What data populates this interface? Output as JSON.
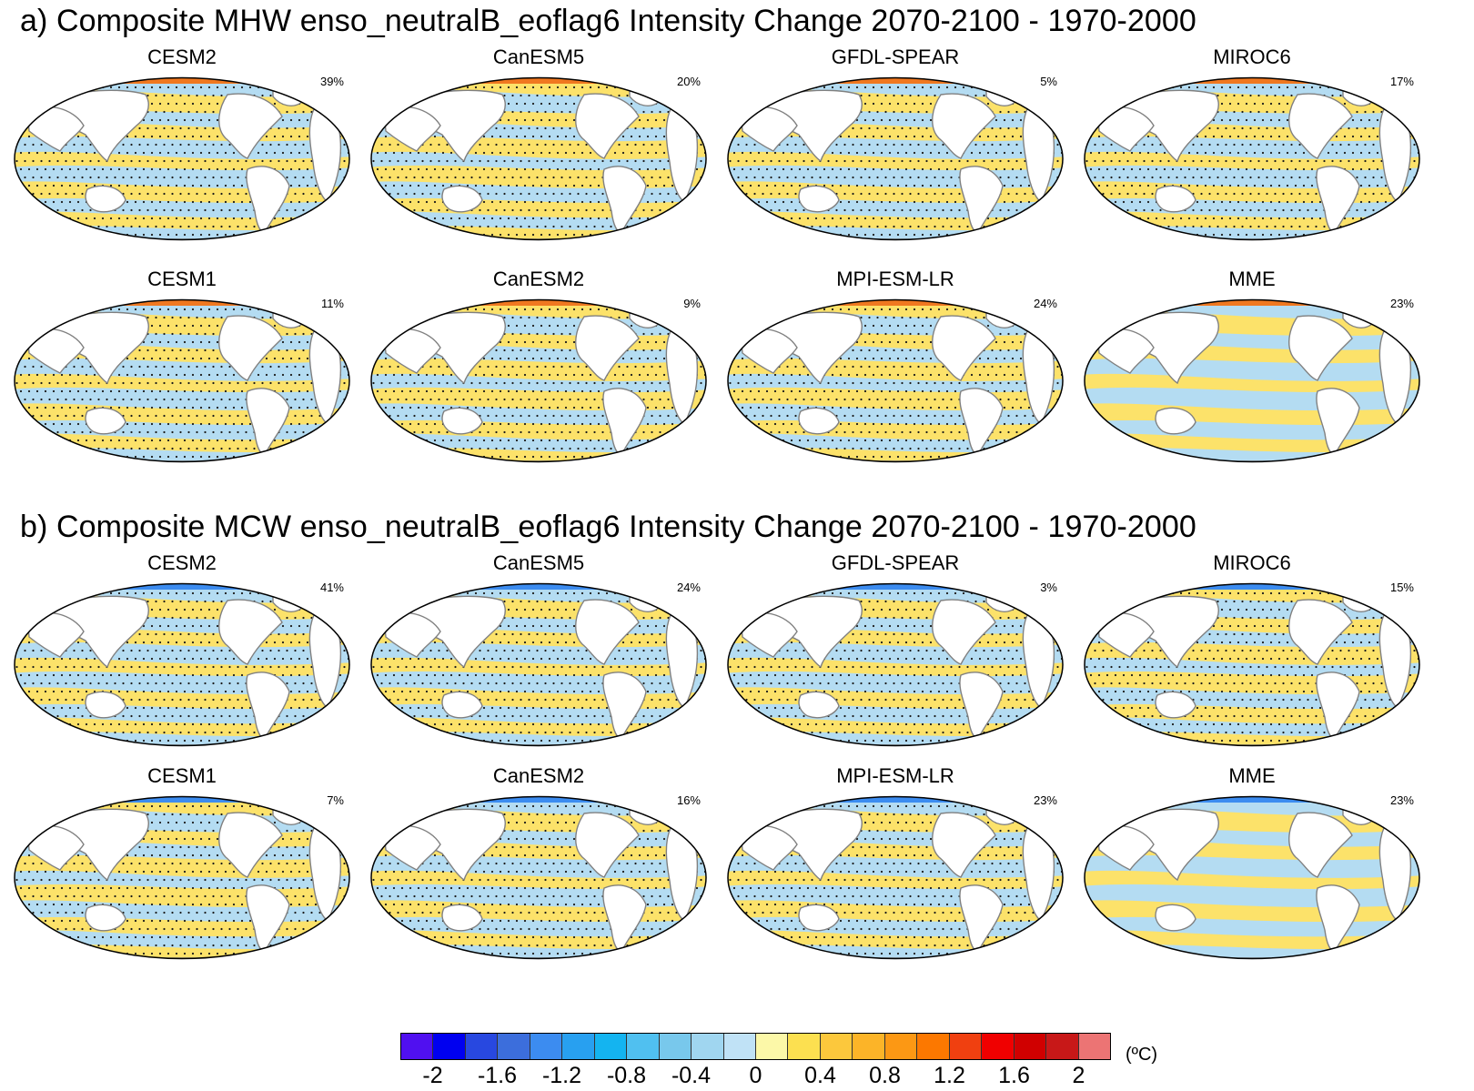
{
  "figure": {
    "title_a": "a) Composite MHW enso_neutralB_eoflag6 Intensity Change 2070-2100 - 1970-2000",
    "title_b": "b) Composite MCW enso_neutralB_eoflag6 Intensity Change 2070-2100 - 1970-2000"
  },
  "panels": [
    {
      "model": "CESM2",
      "pct": "39%",
      "section": "a",
      "dominant": "warm",
      "stipple": true
    },
    {
      "model": "CanESM5",
      "pct": "20%",
      "section": "a",
      "dominant": "cool",
      "stipple": true
    },
    {
      "model": "GFDL-SPEAR",
      "pct": "5%",
      "section": "a",
      "dominant": "warm",
      "stipple": true
    },
    {
      "model": "MIROC6",
      "pct": "17%",
      "section": "a",
      "dominant": "warm",
      "stipple": true
    },
    {
      "model": "CESM1",
      "pct": "11%",
      "section": "a",
      "dominant": "warm",
      "stipple": true
    },
    {
      "model": "CanESM2",
      "pct": "9%",
      "section": "a",
      "dominant": "cool",
      "stipple": true
    },
    {
      "model": "MPI-ESM-LR",
      "pct": "24%",
      "section": "a",
      "dominant": "cool",
      "stipple": true
    },
    {
      "model": "MME",
      "pct": "23%",
      "section": "a",
      "dominant": "warm",
      "stipple": false
    },
    {
      "model": "CESM2",
      "pct": "41%",
      "section": "b",
      "dominant": "warm",
      "stipple": true
    },
    {
      "model": "CanESM5",
      "pct": "24%",
      "section": "b",
      "dominant": "warm",
      "stipple": true
    },
    {
      "model": "GFDL-SPEAR",
      "pct": "3%",
      "section": "b",
      "dominant": "warm",
      "stipple": true
    },
    {
      "model": "MIROC6",
      "pct": "15%",
      "section": "b",
      "dominant": "cool",
      "stipple": true
    },
    {
      "model": "CESM1",
      "pct": "7%",
      "section": "b",
      "dominant": "cool",
      "stipple": true
    },
    {
      "model": "CanESM2",
      "pct": "16%",
      "section": "b",
      "dominant": "warm",
      "stipple": true
    },
    {
      "model": "MPI-ESM-LR",
      "pct": "23%",
      "section": "b",
      "dominant": "warm",
      "stipple": true
    },
    {
      "model": "MME",
      "pct": "23%",
      "section": "b",
      "dominant": "warm",
      "stipple": false
    }
  ],
  "colorbar": {
    "unit": "(ºC)",
    "colors": [
      "#5010f0",
      "#0000f0",
      "#2848e0",
      "#3c6edc",
      "#3c8cf0",
      "#28a0f0",
      "#14b4f0",
      "#50c0f0",
      "#78c8ec",
      "#a0d6f0",
      "#c0e2f6",
      "#fcf8a8",
      "#fce050",
      "#fcc83c",
      "#fcb428",
      "#fc9814",
      "#fc7800",
      "#f04010",
      "#f00000",
      "#d00000",
      "#c81818",
      "#ec7474"
    ],
    "tick_labels": [
      "-2",
      "-1.6",
      "-1.2",
      "-0.8",
      "-0.4",
      "0",
      "0.4",
      "0.8",
      "1.2",
      "1.6",
      "2"
    ],
    "levels": [
      -2.2,
      -2.0,
      -1.8,
      -1.6,
      -1.4,
      -1.2,
      -1.0,
      -0.8,
      -0.6,
      -0.4,
      -0.2,
      0,
      0.2,
      0.4,
      0.6,
      0.8,
      1.0,
      1.2,
      1.4,
      1.6,
      1.8,
      2.0,
      2.2
    ]
  },
  "palette": {
    "warm_fill": "#fce26a",
    "cool_fill": "#b4dcf2",
    "pole_fill": "#f07820",
    "land": "#ffffff",
    "coast": "#808080"
  }
}
